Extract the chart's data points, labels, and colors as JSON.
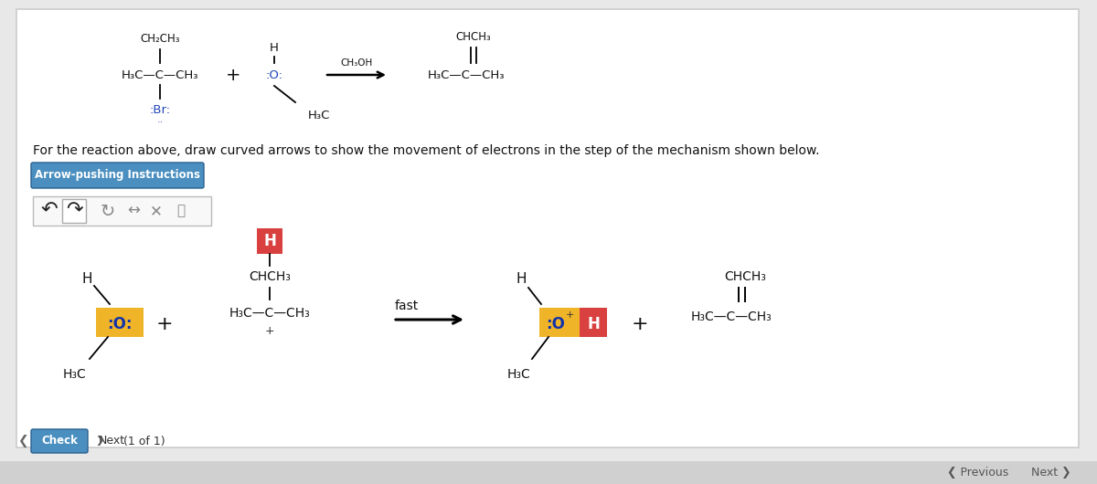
{
  "bg_color": "#e8e8e8",
  "panel_color": "#ffffff",
  "panel_border": "#cccccc",
  "title_text": "For the reaction above, draw curved arrows to show the movement of electrons in the step of the mechanism shown below.",
  "arrow_btn_text": "Arrow-pushing Instructions",
  "arrow_btn_bg": "#4a8fc0",
  "arrow_btn_text_color": "#ffffff",
  "check_btn_text": "Check",
  "check_btn_bg": "#4a8fc0",
  "footer_bg": "#d0d0d0",
  "highlight_yellow": "#f0b429",
  "highlight_red": "#d94040",
  "font_color": "#111111",
  "blue_text": "#2244bb",
  "gray_text": "#888888",
  "icon_border": "#bbbbbb"
}
